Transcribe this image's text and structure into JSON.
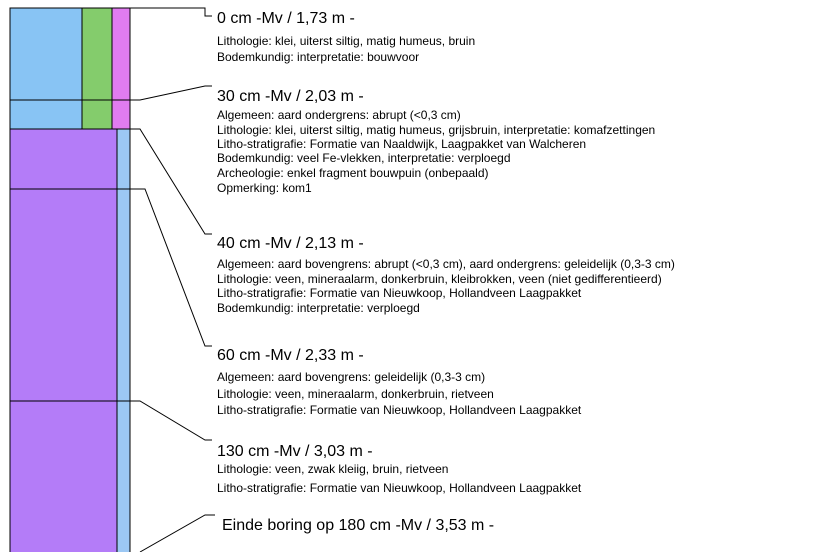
{
  "entries": [
    {
      "heading": "0 cm -Mv / 1,73 m -",
      "lines": [
        "Lithologie: klei, uiterst siltig, matig humeus, bruin",
        "Bodemkundig: interpretatie: bouwvoor"
      ]
    },
    {
      "heading": "30 cm -Mv / 2,03 m -",
      "lines": [
        "Algemeen: aard ondergrens: abrupt (<0,3 cm)",
        "Lithologie: klei, uiterst siltig, matig humeus, grijsbruin, interpretatie: komafzettingen",
        "Litho-stratigrafie: Formatie van Naaldwijk, Laagpakket van Walcheren",
        "Bodemkundig: veel Fe-vlekken, interpretatie: verploegd",
        "Archeologie: enkel fragment bouwpuin (onbepaald)",
        "Opmerking: kom1"
      ]
    },
    {
      "heading": "40 cm -Mv / 2,13 m -",
      "lines": [
        "Algemeen: aard bovengrens: abrupt (<0,3 cm), aard ondergrens: geleidelijk (0,3-3 cm)",
        "Lithologie: veen, mineraalarm, donkerbruin, kleibrokken, veen (niet gedifferentieerd)",
        "Litho-stratigrafie: Formatie van Nieuwkoop, Hollandveen Laagpakket",
        "Bodemkundig: interpretatie: verploegd"
      ]
    },
    {
      "heading": "60 cm -Mv / 2,33 m -",
      "lines": [
        "Algemeen: aard bovengrens: geleidelijk (0,3-3 cm)",
        "Lithologie: veen, mineraalarm, donkerbruin, rietveen",
        "Litho-stratigrafie: Formatie van Nieuwkoop, Hollandveen Laagpakket"
      ]
    },
    {
      "heading": "130 cm -Mv / 3,03 m -",
      "lines": [
        "Lithologie: veen, zwak kleiig, bruin, rietveen",
        "Litho-stratigrafie: Formatie van Nieuwkoop, Hollandveen Laagpakket"
      ]
    }
  ],
  "end": "Einde boring op 180 cm -Mv / 3,53 m -"
}
